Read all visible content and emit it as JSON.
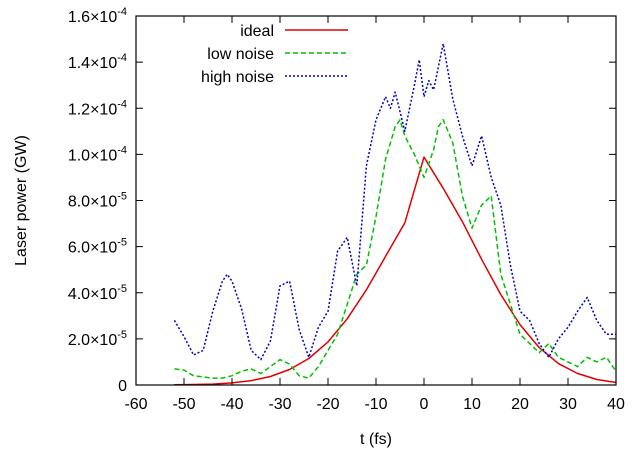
{
  "chart_data": {
    "type": "line",
    "title": "",
    "xlabel": "t (fs)",
    "ylabel": "Laser power (GW)",
    "xlim": [
      -60,
      40
    ],
    "ylim": [
      0,
      0.00016
    ],
    "grid": false,
    "legend_position": "top-left",
    "x_ticks": [
      -60,
      -50,
      -40,
      -30,
      -20,
      -10,
      0,
      10,
      20,
      30,
      40
    ],
    "x_tick_labels": [
      "-60",
      "-50",
      "-40",
      "-30",
      "-20",
      "-10",
      "0",
      "10",
      "20",
      "30",
      "40"
    ],
    "y_ticks": [
      {
        "value": 0,
        "mantissa": "0",
        "exponent": ""
      },
      {
        "value": 2e-05,
        "mantissa": "2.0×10",
        "exponent": "-5"
      },
      {
        "value": 4e-05,
        "mantissa": "4.0×10",
        "exponent": "-5"
      },
      {
        "value": 6e-05,
        "mantissa": "6.0×10",
        "exponent": "-5"
      },
      {
        "value": 8e-05,
        "mantissa": "8.0×10",
        "exponent": "-5"
      },
      {
        "value": 0.0001,
        "mantissa": "1.0×10",
        "exponent": "-4"
      },
      {
        "value": 0.00012,
        "mantissa": "1.2×10",
        "exponent": "-4"
      },
      {
        "value": 0.00014,
        "mantissa": "1.4×10",
        "exponent": "-4"
      },
      {
        "value": 0.00016,
        "mantissa": "1.6×10",
        "exponent": "-4"
      }
    ],
    "series": [
      {
        "name": "ideal",
        "color": "#e00000",
        "style": "solid",
        "x": [
          -52,
          -48,
          -44,
          -40,
          -36,
          -32,
          -28,
          -24,
          -20,
          -16,
          -12,
          -8,
          -4,
          0,
          4,
          8,
          12,
          16,
          20,
          24,
          28,
          32,
          36,
          40
        ],
        "y": [
          1e-07,
          2e-07,
          4e-07,
          9e-07,
          1.9e-06,
          3.7e-06,
          6.7e-06,
          1.15e-05,
          1.87e-05,
          2.87e-05,
          4.13e-05,
          5.58e-05,
          7.03e-05,
          9.88e-05,
          8.53e-05,
          7.08e-05,
          5.45e-05,
          3.92e-05,
          2.62e-05,
          1.62e-05,
          9.3e-06,
          5e-06,
          2.4e-06,
          1.1e-06
        ]
      },
      {
        "name": "low noise",
        "color": "#00c000",
        "style": "dashed",
        "x": [
          -52,
          -50,
          -48,
          -46,
          -44,
          -42,
          -40,
          -38,
          -36,
          -34,
          -32,
          -30,
          -28,
          -26,
          -24,
          -22,
          -20,
          -18,
          -16,
          -14,
          -12,
          -10,
          -8,
          -6,
          -5,
          -4,
          -2,
          0,
          2,
          3,
          4,
          6,
          8,
          10,
          12,
          14,
          16,
          18,
          20,
          22,
          24,
          26,
          28,
          30,
          32,
          34,
          36,
          38,
          40
        ],
        "y": [
          7e-06,
          6.5e-06,
          4e-06,
          3.5e-06,
          3e-06,
          3e-06,
          4e-06,
          6e-06,
          7e-06,
          5e-06,
          8e-06,
          1.1e-05,
          9e-06,
          4e-06,
          3e-06,
          8e-06,
          1.5e-05,
          2.2e-05,
          3.5e-05,
          4.8e-05,
          5.2e-05,
          7.3e-05,
          9.8e-05,
          0.000112,
          0.000115,
          0.000108,
          0.0001,
          9e-05,
          0.000102,
          0.000112,
          0.000115,
          0.000105,
          8.2e-05,
          6.8e-05,
          7.8e-05,
          8.2e-05,
          4.8e-05,
          3.5e-05,
          2.2e-05,
          1.8e-05,
          1.4e-05,
          1.8e-05,
          1.2e-05,
          1e-05,
          8e-06,
          1.2e-05,
          1e-05,
          1.2e-05,
          6e-06
        ]
      },
      {
        "name": "high noise",
        "color": "#0000c0",
        "style": "dotted",
        "x": [
          -52,
          -50,
          -48,
          -46,
          -44,
          -42,
          -41,
          -40,
          -38,
          -36,
          -34,
          -32,
          -30,
          -28,
          -26,
          -24,
          -22,
          -20,
          -18,
          -16,
          -14,
          -12,
          -10,
          -8,
          -7,
          -6,
          -4,
          -2,
          -1,
          0,
          1,
          2,
          3,
          4,
          6,
          8,
          10,
          12,
          14,
          16,
          18,
          20,
          22,
          24,
          26,
          28,
          30,
          32,
          34,
          36,
          38,
          40
        ],
        "y": [
          2.8e-05,
          2.1e-05,
          1.3e-05,
          1.5e-05,
          3.2e-05,
          4.5e-05,
          4.8e-05,
          4.5e-05,
          3.3e-05,
          1.5e-05,
          1.1e-05,
          1.9e-05,
          4.3e-05,
          4.5e-05,
          2.4e-05,
          1.2e-05,
          2.5e-05,
          3.2e-05,
          5.8e-05,
          6.4e-05,
          4.3e-05,
          9.5e-05,
          0.000115,
          0.000125,
          0.00012,
          0.000127,
          0.00011,
          0.00013,
          0.000141,
          0.000125,
          0.000132,
          0.000128,
          0.000138,
          0.000148,
          0.000124,
          0.000108,
          9.5e-05,
          0.000108,
          9e-05,
          7.8e-05,
          5.2e-05,
          3.2e-05,
          2.8e-05,
          1.8e-05,
          1.2e-05,
          2e-05,
          2.5e-05,
          3.2e-05,
          3.8e-05,
          2.8e-05,
          2.2e-05,
          2.2e-05
        ]
      }
    ]
  }
}
